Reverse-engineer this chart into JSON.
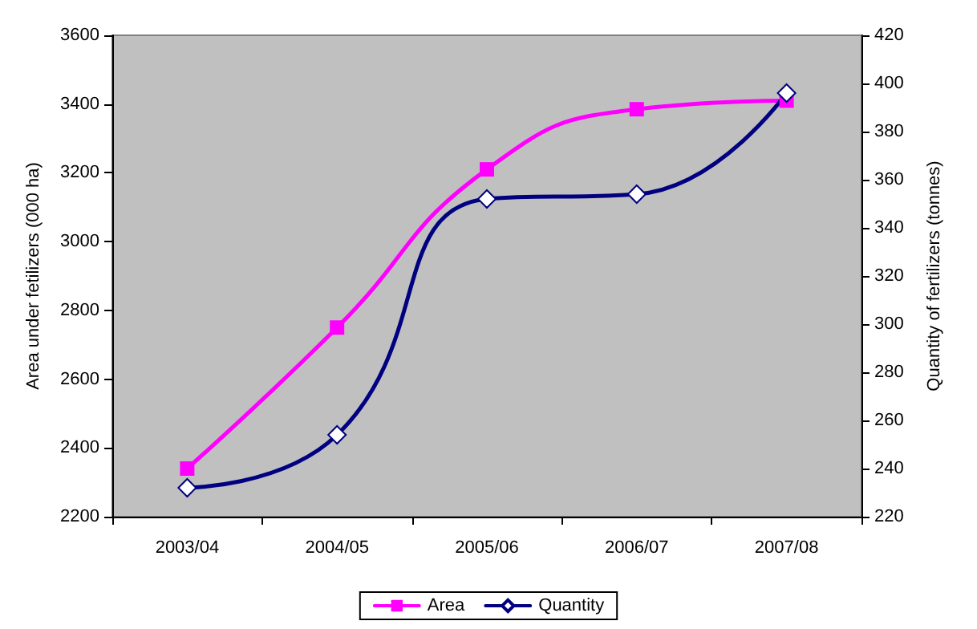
{
  "chart_data": {
    "type": "line",
    "ylabel": "Area under fetilizers (000 ha)",
    "y2label": "Quantity of fertilizers (tonnes)",
    "categories": [
      "2003/04",
      "2004/05",
      "2005/06",
      "2006/07",
      "2007/08"
    ],
    "series": [
      {
        "name": "Area",
        "color": "#ff00ff",
        "marker": "square",
        "values": [
          2340,
          2750,
          3210,
          3385,
          3410
        ]
      },
      {
        "name": "Quantity",
        "color": "#000080",
        "marker": "diamond",
        "axis": "y2",
        "values": [
          232,
          254,
          352,
          354,
          396
        ]
      }
    ],
    "ylim": [
      2200,
      3600
    ],
    "yticks": [
      2200,
      2400,
      2600,
      2800,
      3000,
      3200,
      3400,
      3600
    ],
    "y2lim": [
      220,
      420
    ],
    "y2ticks": [
      220,
      240,
      260,
      280,
      300,
      320,
      340,
      360,
      380,
      400,
      420
    ],
    "grid": false,
    "legend": "bottom"
  }
}
